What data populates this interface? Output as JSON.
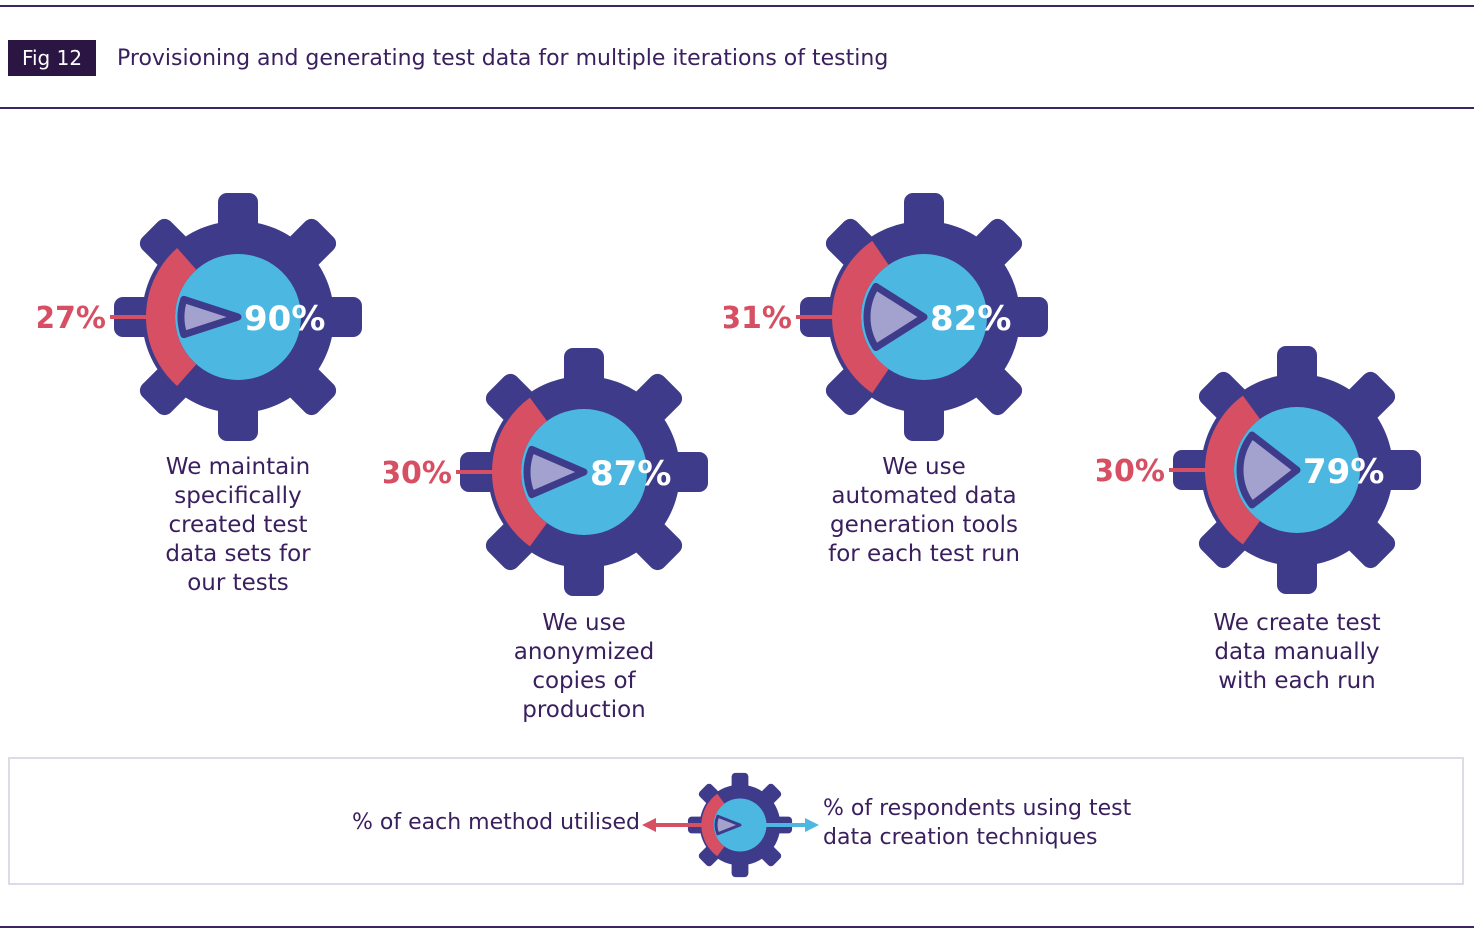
{
  "header": {
    "fig_tag": "Fig 12",
    "title": "Provisioning and generating test data for multiple iterations of testing"
  },
  "colors": {
    "gear": "#3f3b8b",
    "blue": "#4cb8e2",
    "lavender": "#a3a1cd",
    "red": "#d64f62",
    "heading": "#3a1f5e",
    "rule": "#3d2462",
    "badge_background": "#2b1543",
    "legend_border": "#dcdce9",
    "percent_text": "#ffffff"
  },
  "chart_data": {
    "type": "pie",
    "title": "Provisioning and generating test data for multiple iterations of testing",
    "legend_meaning": {
      "red_arc": "% of each method utilised",
      "blue_circle": "% of respondents using test data creation techniques"
    },
    "items": [
      {
        "caption": "We maintain\nspecifically\ncreated test\ndata sets for\nour tests",
        "method_pct": 27,
        "method_label": "27%",
        "respondents_pct": 90,
        "respondents_label": "90%"
      },
      {
        "caption": "We use\nanonymized\ncopies of\nproduction",
        "method_pct": 30,
        "method_label": "30%",
        "respondents_pct": 87,
        "respondents_label": "87%"
      },
      {
        "caption": "We use\nautomated data\ngeneration tools\nfor each test run",
        "method_pct": 31,
        "method_label": "31%",
        "respondents_pct": 82,
        "respondents_label": "82%"
      },
      {
        "caption": "We create test\ndata manually\nwith each run",
        "method_pct": 30,
        "method_label": "30%",
        "respondents_pct": 79,
        "respondents_label": "79%"
      }
    ]
  },
  "legend": {
    "left_label": "% of each method utilised",
    "right_label": "% of respondents using test\ndata creation techniques"
  }
}
